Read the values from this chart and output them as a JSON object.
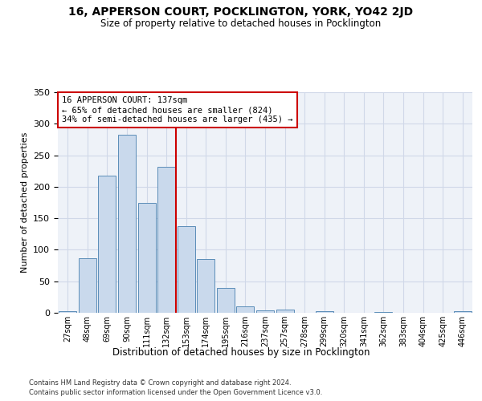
{
  "title_line1": "16, APPERSON COURT, POCKLINGTON, YORK, YO42 2JD",
  "title_line2": "Size of property relative to detached houses in Pocklington",
  "xlabel": "Distribution of detached houses by size in Pocklington",
  "ylabel": "Number of detached properties",
  "bar_labels": [
    "27sqm",
    "48sqm",
    "69sqm",
    "90sqm",
    "111sqm",
    "132sqm",
    "153sqm",
    "174sqm",
    "195sqm",
    "216sqm",
    "237sqm",
    "257sqm",
    "278sqm",
    "299sqm",
    "320sqm",
    "341sqm",
    "362sqm",
    "383sqm",
    "404sqm",
    "425sqm",
    "446sqm"
  ],
  "bar_values": [
    3,
    87,
    218,
    283,
    175,
    232,
    137,
    85,
    40,
    10,
    4,
    5,
    0,
    3,
    0,
    0,
    1,
    0,
    0,
    0,
    2
  ],
  "bar_color": "#c9d9ec",
  "bar_edge_color": "#5b8db8",
  "grid_color": "#d0d8e8",
  "background_color": "#eef2f8",
  "red_line_x": 5.5,
  "annotation_text": "16 APPERSON COURT: 137sqm\n← 65% of detached houses are smaller (824)\n34% of semi-detached houses are larger (435) →",
  "annotation_box_color": "#ffffff",
  "annotation_box_edge_color": "#cc0000",
  "ylim": [
    0,
    350
  ],
  "yticks": [
    0,
    50,
    100,
    150,
    200,
    250,
    300,
    350
  ],
  "footer_line1": "Contains HM Land Registry data © Crown copyright and database right 2024.",
  "footer_line2": "Contains public sector information licensed under the Open Government Licence v3.0."
}
